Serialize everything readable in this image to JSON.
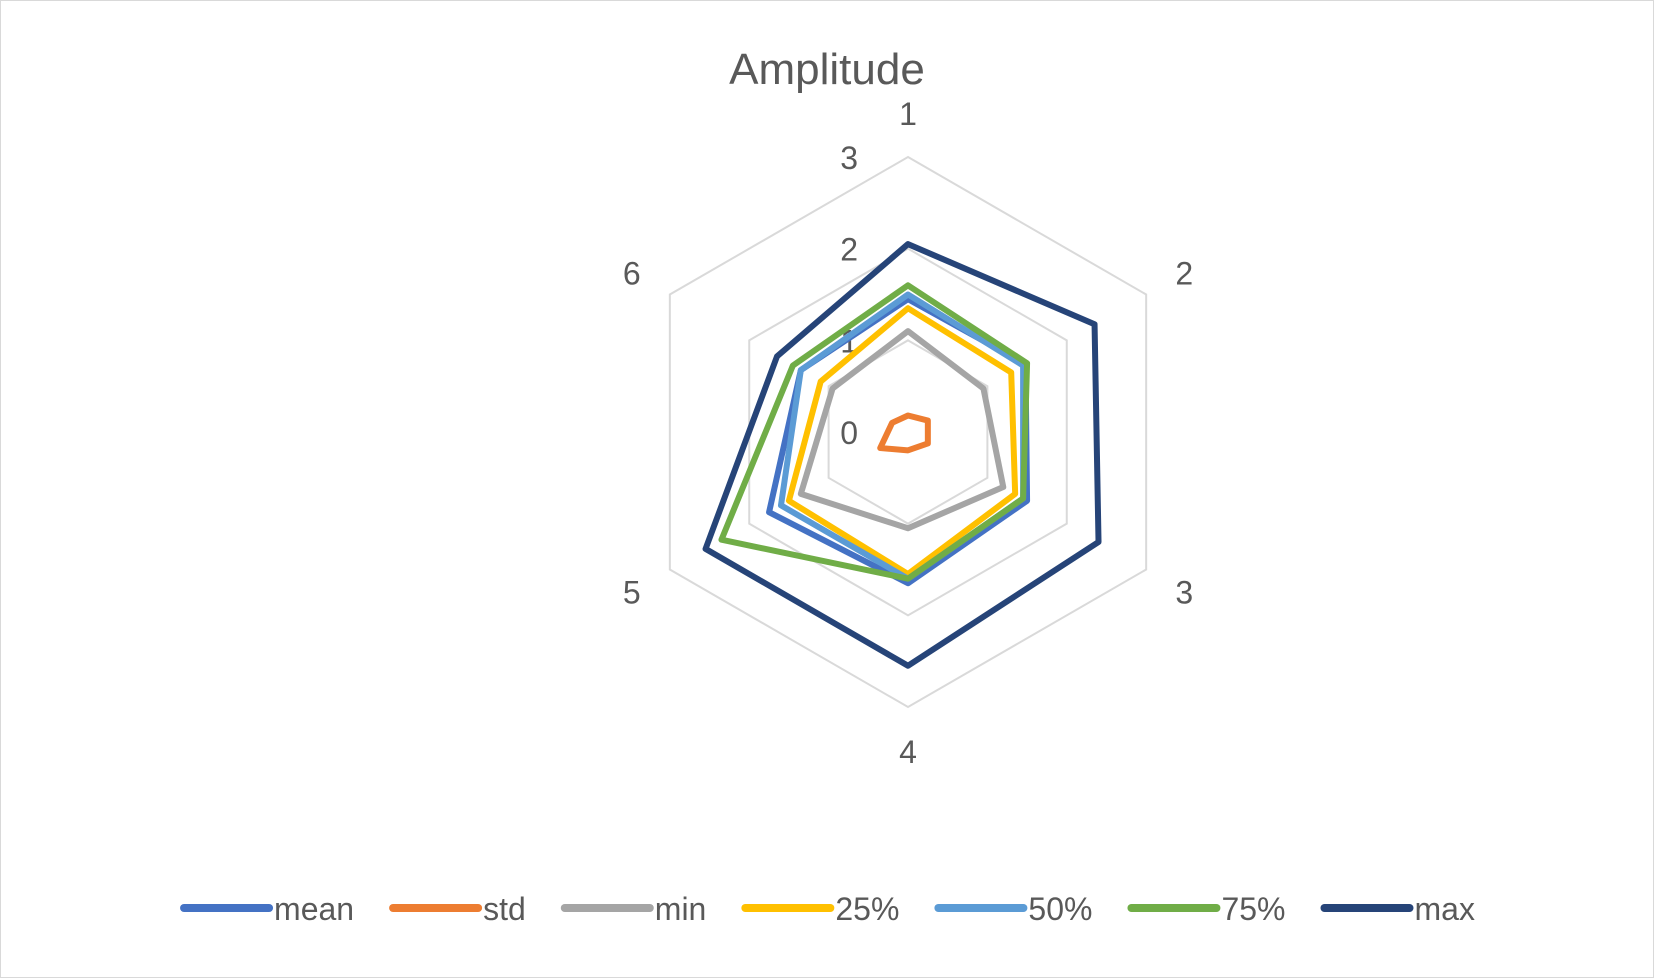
{
  "chart_data": {
    "type": "radar",
    "title": "Amplitude",
    "categories": [
      "1",
      "2",
      "3",
      "4",
      "5",
      "6"
    ],
    "rmax": 3,
    "ticks": [
      0,
      1,
      2,
      3
    ],
    "grid": true,
    "legend_position": "bottom",
    "series": [
      {
        "name": "mean",
        "color": "#4472C4",
        "values": [
          1.45,
          1.48,
          1.5,
          1.65,
          1.75,
          1.35
        ]
      },
      {
        "name": "std",
        "color": "#ED7D31",
        "values": [
          0.18,
          0.25,
          0.25,
          0.2,
          0.35,
          0.2
        ]
      },
      {
        "name": "min",
        "color": "#A5A5A5",
        "values": [
          1.1,
          0.95,
          1.2,
          1.05,
          1.35,
          0.95
        ]
      },
      {
        "name": "25%",
        "color": "#FFC000",
        "values": [
          1.35,
          1.3,
          1.35,
          1.55,
          1.5,
          1.1
        ]
      },
      {
        "name": "50%",
        "color": "#5B9BD5",
        "values": [
          1.5,
          1.45,
          1.45,
          1.6,
          1.6,
          1.35
        ]
      },
      {
        "name": "75%",
        "color": "#70AD47",
        "values": [
          1.6,
          1.5,
          1.45,
          1.6,
          2.35,
          1.45
        ]
      },
      {
        "name": "max",
        "color": "#264478",
        "values": [
          2.05,
          2.35,
          2.4,
          2.55,
          2.55,
          1.65
        ]
      }
    ]
  }
}
